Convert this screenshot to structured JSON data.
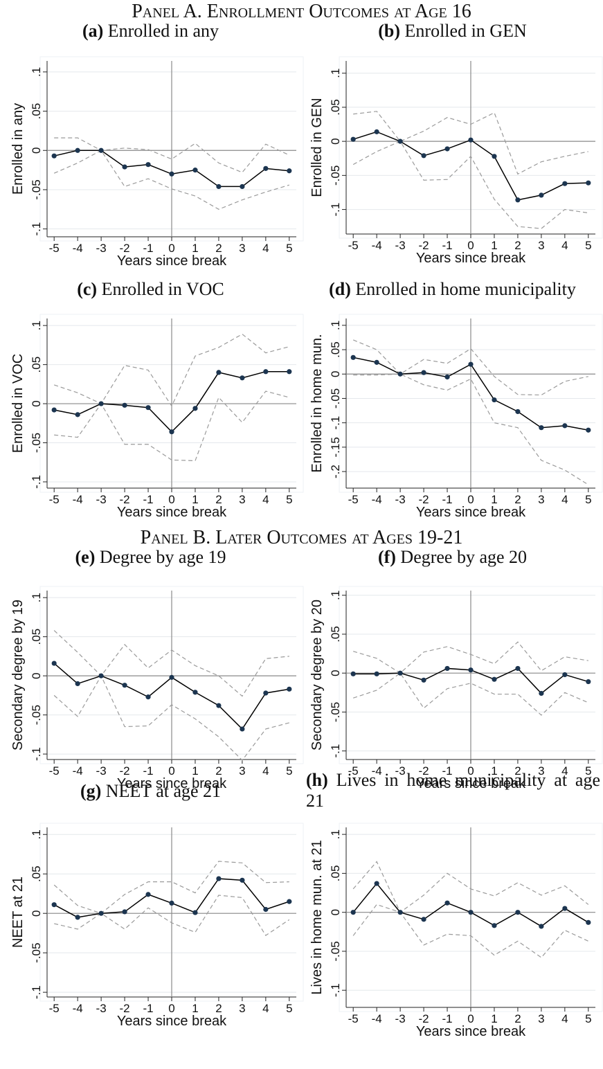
{
  "panels": [
    {
      "title": "Panel A. Enrollment Outcomes at Age 16"
    },
    {
      "title": "Panel B. Later Outcomes at Ages 19-21"
    }
  ],
  "chart_data": [
    {
      "type": "line",
      "label": "(a)",
      "title": "Enrolled in any",
      "ylabel": "Enrolled in any",
      "xlabel": "Years since break",
      "x": [
        -5,
        -4,
        -3,
        -2,
        -1,
        0,
        1,
        2,
        3,
        4,
        5
      ],
      "xlim": [
        -5.3,
        5.3
      ],
      "xticks": [
        -5,
        -4,
        -3,
        -2,
        -1,
        0,
        1,
        2,
        3,
        4,
        5
      ],
      "ylim": [
        -0.11,
        0.114
      ],
      "yticks": [
        {
          "value": 0.1,
          "label": ".1"
        },
        {
          "value": 0.05,
          "label": ".05"
        },
        0,
        {
          "value": -0.05,
          "label": "-.05"
        },
        {
          "value": -0.1,
          "label": "-.1"
        }
      ],
      "grid": true,
      "hline": 0,
      "vline": 0,
      "series": [
        {
          "color": "#000000",
          "marker_color": "#1c3550",
          "values": [
            -0.007,
            0,
            0,
            -0.021,
            -0.018,
            -0.03,
            -0.025,
            -0.046,
            -0.046,
            -0.023,
            -0.026
          ]
        },
        {
          "color": "#9a9a9a",
          "dash": true,
          "values": [
            0.016,
            0.016,
            0,
            0.003,
            0.001,
            -0.011,
            0.009,
            -0.016,
            -0.028,
            0.008,
            -0.006
          ]
        },
        {
          "color": "#9a9a9a",
          "dash": true,
          "values": [
            -0.029,
            -0.016,
            0,
            -0.046,
            -0.036,
            -0.049,
            -0.058,
            -0.075,
            -0.063,
            -0.053,
            -0.044
          ]
        }
      ]
    },
    {
      "type": "line",
      "label": "(b)",
      "title": "Enrolled in GEN",
      "ylabel": "Enrolled in GEN",
      "xlabel": "Years since break",
      "x": [
        -5,
        -4,
        -3,
        -2,
        -1,
        0,
        1,
        2,
        3,
        4,
        5
      ],
      "xlim": [
        -5.3,
        5.3
      ],
      "xticks": [
        -5,
        -4,
        -3,
        -2,
        -1,
        0,
        1,
        2,
        3,
        4,
        5
      ],
      "ylim": [
        -0.136,
        0.118
      ],
      "yticks": [
        {
          "value": 0.1,
          "label": ".1"
        },
        {
          "value": 0.05,
          "label": ".05"
        },
        0,
        {
          "value": -0.05,
          "label": "-.05"
        },
        {
          "value": -0.1,
          "label": "-.1"
        }
      ],
      "grid": true,
      "hline": 0,
      "vline": 0,
      "series": [
        {
          "color": "#000000",
          "marker_color": "#1c3550",
          "values": [
            0.003,
            0.014,
            0,
            -0.021,
            -0.011,
            0.002,
            -0.022,
            -0.086,
            -0.079,
            -0.062,
            -0.061
          ]
        },
        {
          "color": "#9a9a9a",
          "dash": true,
          "values": [
            0.04,
            0.044,
            0,
            0.015,
            0.035,
            0.025,
            0.042,
            -0.048,
            -0.03,
            -0.022,
            -0.015
          ]
        },
        {
          "color": "#9a9a9a",
          "dash": true,
          "values": [
            -0.034,
            -0.015,
            0,
            -0.057,
            -0.056,
            -0.022,
            -0.085,
            -0.125,
            -0.128,
            -0.1,
            -0.105
          ]
        }
      ]
    },
    {
      "type": "line",
      "label": "(c)",
      "title": "Enrolled in VOC",
      "ylabel": "Enrolled in VOC",
      "xlabel": "Years since break",
      "x": [
        -5,
        -4,
        -3,
        -2,
        -1,
        0,
        1,
        2,
        3,
        4,
        5
      ],
      "xlim": [
        -5.3,
        5.3
      ],
      "xticks": [
        -5,
        -4,
        -3,
        -2,
        -1,
        0,
        1,
        2,
        3,
        4,
        5
      ],
      "ylim": [
        -0.108,
        0.109
      ],
      "yticks": [
        {
          "value": 0.1,
          "label": ".1"
        },
        {
          "value": 0.05,
          "label": ".05"
        },
        0,
        {
          "value": -0.05,
          "label": "-.05"
        },
        {
          "value": -0.1,
          "label": "-.1"
        }
      ],
      "grid": true,
      "hline": 0,
      "vline": 0,
      "series": [
        {
          "color": "#000000",
          "marker_color": "#1c3550",
          "values": [
            -0.008,
            -0.014,
            0,
            -0.002,
            -0.005,
            -0.036,
            -0.006,
            0.04,
            0.033,
            0.041,
            0.041
          ]
        },
        {
          "color": "#9a9a9a",
          "dash": true,
          "values": [
            0.024,
            0.014,
            0,
            0.049,
            0.043,
            -0.003,
            0.061,
            0.072,
            0.089,
            0.065,
            0.073
          ]
        },
        {
          "color": "#9a9a9a",
          "dash": true,
          "values": [
            -0.04,
            -0.043,
            0,
            -0.052,
            -0.052,
            -0.072,
            -0.073,
            0.008,
            -0.024,
            0.016,
            0.008
          ]
        }
      ]
    },
    {
      "type": "line",
      "label": "(d)",
      "title": "Enrolled in home municipality",
      "ylabel": "Enrolled in home mun.",
      "xlabel": "Years since break",
      "x": [
        -5,
        -4,
        -3,
        -2,
        -1,
        0,
        1,
        2,
        3,
        4,
        5
      ],
      "xlim": [
        -5.3,
        5.3
      ],
      "xticks": [
        -5,
        -4,
        -3,
        -2,
        -1,
        0,
        1,
        2,
        3,
        4,
        5
      ],
      "ylim": [
        -0.234,
        0.114
      ],
      "yticks": [
        {
          "value": 0.1,
          "label": ".1"
        },
        {
          "value": 0.05,
          "label": ".05"
        },
        0,
        {
          "value": -0.05,
          "label": "-.05"
        },
        {
          "value": -0.1,
          "label": "-.1"
        },
        {
          "value": -0.15,
          "label": "-.15"
        },
        {
          "value": -0.2,
          "label": "-.2"
        }
      ],
      "grid": true,
      "hline": 0,
      "vline": 0,
      "series": [
        {
          "color": "#000000",
          "marker_color": "#1c3550",
          "values": [
            0.034,
            0.024,
            0,
            0.003,
            -0.006,
            0.02,
            -0.053,
            -0.077,
            -0.11,
            -0.106,
            -0.115
          ]
        },
        {
          "color": "#9a9a9a",
          "dash": true,
          "values": [
            0.07,
            0.05,
            0,
            0.03,
            0.022,
            0.052,
            -0.005,
            -0.042,
            -0.043,
            -0.015,
            -0.005
          ]
        },
        {
          "color": "#9a9a9a",
          "dash": true,
          "values": [
            -0.002,
            -0.002,
            0,
            -0.022,
            -0.033,
            -0.01,
            -0.1,
            -0.11,
            -0.177,
            -0.197,
            -0.227
          ]
        }
      ]
    },
    {
      "type": "line",
      "label": "(e)",
      "title": "Degree by age 19",
      "ylabel": "Secondary degree by 19",
      "xlabel": "Years since break",
      "x": [
        -5,
        -4,
        -3,
        -2,
        -1,
        0,
        1,
        2,
        3,
        4,
        5
      ],
      "xlim": [
        -5.3,
        5.3
      ],
      "xticks": [
        -5,
        -4,
        -3,
        -2,
        -1,
        0,
        1,
        2,
        3,
        4,
        5
      ],
      "ylim": [
        -0.107,
        0.109
      ],
      "yticks": [
        {
          "value": 0.1,
          "label": ".1"
        },
        {
          "value": 0.05,
          "label": ".05"
        },
        0,
        {
          "value": -0.05,
          "label": "-.05"
        },
        {
          "value": -0.1,
          "label": "-.1"
        }
      ],
      "grid": true,
      "hline": 0,
      "vline": 0,
      "series": [
        {
          "color": "#000000",
          "marker_color": "#1c3550",
          "values": [
            0.016,
            -0.01,
            0,
            -0.012,
            -0.027,
            -0.002,
            -0.021,
            -0.038,
            -0.068,
            -0.022,
            -0.017
          ]
        },
        {
          "color": "#9a9a9a",
          "dash": true,
          "values": [
            0.058,
            0.03,
            0,
            0.04,
            0.01,
            0.033,
            0.013,
            0,
            -0.026,
            0.022,
            0.025
          ]
        },
        {
          "color": "#9a9a9a",
          "dash": true,
          "values": [
            -0.025,
            -0.052,
            0,
            -0.065,
            -0.064,
            -0.037,
            -0.055,
            -0.078,
            -0.108,
            -0.068,
            -0.06
          ]
        }
      ]
    },
    {
      "type": "line",
      "label": "(f)",
      "title": "Degree by age 20",
      "ylabel": "Secondary degree by 20",
      "xlabel": "Years since break",
      "x": [
        -5,
        -4,
        -3,
        -2,
        -1,
        0,
        1,
        2,
        3,
        4,
        5
      ],
      "xlim": [
        -5.3,
        5.3
      ],
      "xticks": [
        -5,
        -4,
        -3,
        -2,
        -1,
        0,
        1,
        2,
        3,
        4,
        5
      ],
      "ylim": [
        -0.111,
        0.106
      ],
      "yticks": [
        {
          "value": 0.1,
          "label": ".1"
        },
        {
          "value": 0.05,
          "label": ".05"
        },
        0,
        {
          "value": -0.05,
          "label": "-.05"
        },
        {
          "value": -0.1,
          "label": "-.1"
        }
      ],
      "grid": true,
      "hline": 0,
      "vline": 0,
      "series": [
        {
          "color": "#000000",
          "marker_color": "#1c3550",
          "values": [
            -0.001,
            -0.001,
            0,
            -0.009,
            0.006,
            0.004,
            -0.008,
            0.006,
            -0.026,
            -0.002,
            -0.011
          ]
        },
        {
          "color": "#9a9a9a",
          "dash": true,
          "values": [
            0.028,
            0.019,
            0,
            0.027,
            0.034,
            0.024,
            0.012,
            0.04,
            0.003,
            0.021,
            0.016
          ]
        },
        {
          "color": "#9a9a9a",
          "dash": true,
          "values": [
            -0.032,
            -0.022,
            0,
            -0.045,
            -0.02,
            -0.013,
            -0.027,
            -0.027,
            -0.054,
            -0.025,
            -0.038
          ]
        }
      ]
    },
    {
      "type": "line",
      "label": "(g)",
      "title": "NEET at age 21",
      "ylabel": "NEET at 21",
      "xlabel": "Years since break",
      "x": [
        -5,
        -4,
        -3,
        -2,
        -1,
        0,
        1,
        2,
        3,
        4,
        5
      ],
      "xlim": [
        -5.3,
        5.3
      ],
      "xticks": [
        -5,
        -4,
        -3,
        -2,
        -1,
        0,
        1,
        2,
        3,
        4,
        5
      ],
      "ylim": [
        -0.106,
        0.109
      ],
      "yticks": [
        {
          "value": 0.1,
          "label": ".1"
        },
        {
          "value": 0.05,
          "label": ".05"
        },
        0,
        {
          "value": -0.05,
          "label": "-.05"
        },
        {
          "value": -0.1,
          "label": "-.1"
        }
      ],
      "grid": true,
      "hline": 0,
      "vline": 0,
      "series": [
        {
          "color": "#000000",
          "marker_color": "#1c3550",
          "values": [
            0.011,
            -0.005,
            0,
            0.002,
            0.024,
            0.013,
            0.001,
            0.044,
            0.042,
            0.005,
            0.015
          ]
        },
        {
          "color": "#9a9a9a",
          "dash": true,
          "values": [
            0.036,
            0.01,
            0,
            0.024,
            0.04,
            0.04,
            0.026,
            0.066,
            0.064,
            0.039,
            0.04
          ]
        },
        {
          "color": "#9a9a9a",
          "dash": true,
          "values": [
            -0.013,
            -0.02,
            0,
            -0.02,
            0.007,
            -0.012,
            -0.024,
            0.023,
            0.02,
            -0.028,
            -0.008
          ]
        }
      ]
    },
    {
      "type": "line",
      "label": "(h)",
      "title": "Lives in home municipality at age 21",
      "ylabel": "Lives in home mun. at 21",
      "xlabel": "Years since break",
      "x": [
        -5,
        -4,
        -3,
        -2,
        -1,
        0,
        1,
        2,
        3,
        4,
        5
      ],
      "xlim": [
        -5.3,
        5.3
      ],
      "xticks": [
        -5,
        -4,
        -3,
        -2,
        -1,
        0,
        1,
        2,
        3,
        4,
        5
      ],
      "ylim": [
        -0.122,
        0.109
      ],
      "yticks": [
        {
          "value": 0.1,
          "label": ".1"
        },
        {
          "value": 0.05,
          "label": ".05"
        },
        0,
        {
          "value": -0.05,
          "label": "-.05"
        },
        {
          "value": -0.1,
          "label": "-.1"
        }
      ],
      "grid": true,
      "hline": 0,
      "vline": 0,
      "series": [
        {
          "color": "#000000",
          "marker_color": "#1c3550",
          "values": [
            0,
            0.037,
            0,
            -0.009,
            0.012,
            0,
            -0.017,
            0,
            -0.018,
            0.005,
            -0.013
          ]
        },
        {
          "color": "#9a9a9a",
          "dash": true,
          "values": [
            0.03,
            0.065,
            0,
            0.022,
            0.05,
            0.03,
            0.021,
            0.038,
            0.022,
            0.034,
            0.01
          ]
        },
        {
          "color": "#9a9a9a",
          "dash": true,
          "values": [
            -0.03,
            0.01,
            0,
            -0.042,
            -0.028,
            -0.03,
            -0.055,
            -0.037,
            -0.058,
            -0.023,
            -0.037
          ]
        }
      ]
    }
  ]
}
